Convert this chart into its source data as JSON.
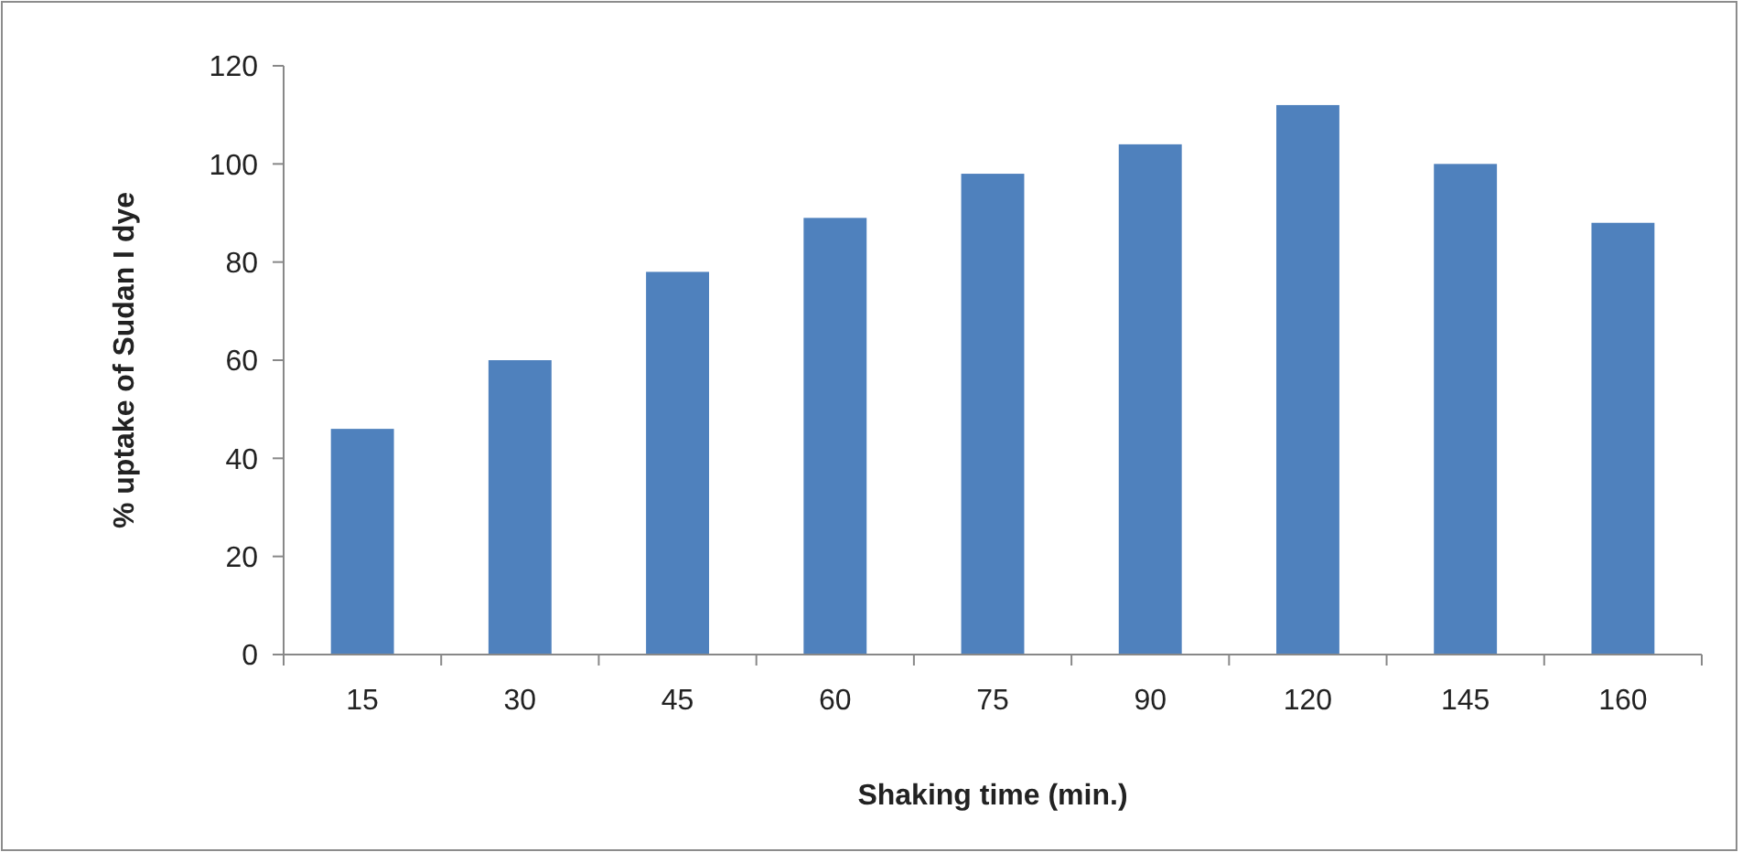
{
  "chart_data": {
    "type": "bar",
    "xlabel": "Shaking time (min.)",
    "ylabel": "% uptake of Sudan I dye",
    "categories": [
      "15",
      "30",
      "45",
      "60",
      "75",
      "90",
      "120",
      "145",
      "160"
    ],
    "values": [
      46,
      60,
      78,
      89,
      98,
      104,
      112,
      100,
      88
    ],
    "color": "#4f81bd",
    "ylim": [
      0,
      120
    ],
    "yticks": [
      0,
      20,
      40,
      60,
      80,
      100,
      120
    ],
    "grid": false
  }
}
